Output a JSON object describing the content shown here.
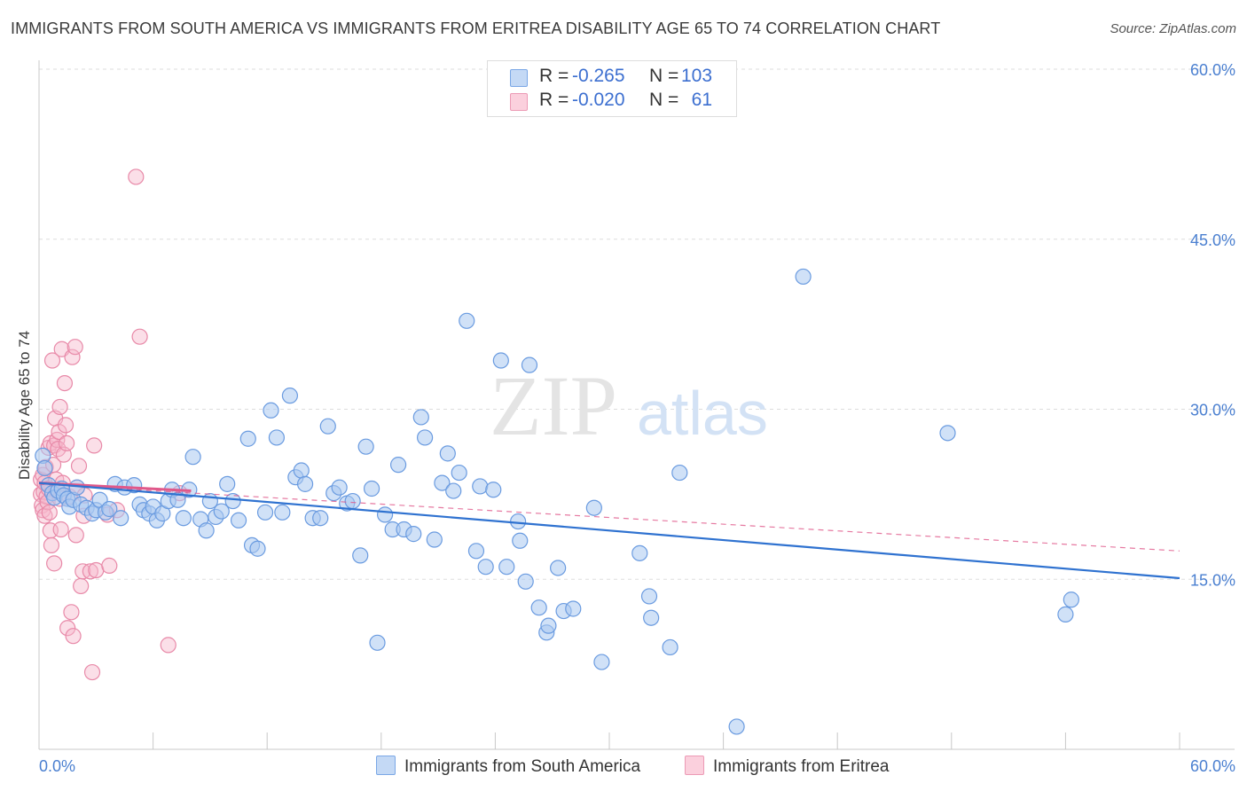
{
  "header": {
    "title": "IMMIGRANTS FROM SOUTH AMERICA VS IMMIGRANTS FROM ERITREA DISABILITY AGE 65 TO 74 CORRELATION CHART",
    "source": "Source: ZipAtlas.com"
  },
  "watermark": {
    "zip": "ZIP",
    "atlas": "atlas"
  },
  "legend": {
    "rows": [
      {
        "r_label": "R =",
        "r_value": "-0.265",
        "n_label": "N =",
        "n_value": "103",
        "color": "#a9c8f0"
      },
      {
        "r_label": "R =",
        "r_value": "-0.020",
        "n_label": "N =",
        "n_value": "61",
        "color": "#f7b7cb"
      }
    ]
  },
  "bottom_legend": {
    "series1": "Immigrants from South America",
    "series2": "Immigrants from Eritrea"
  },
  "colors": {
    "blue_fill": "#a9c8f0",
    "blue_stroke": "#6a9be0",
    "blue_line": "#2f72d0",
    "pink_fill": "#f7b7cb",
    "pink_stroke": "#e889a8",
    "pink_line": "#e0588a",
    "grid": "#dddddd",
    "tick_text": "#4a7fd0"
  },
  "chart_data": {
    "type": "scatter",
    "title": "IMMIGRANTS FROM SOUTH AMERICA VS IMMIGRANTS FROM ERITREA DISABILITY AGE 65 TO 74 CORRELATION CHART",
    "xlabel": "",
    "ylabel": "Disability Age 65 to 74",
    "xlim": [
      0,
      60
    ],
    "ylim": [
      0,
      60
    ],
    "x_tick_labels": [
      "0.0%",
      "60.0%"
    ],
    "y_ticks": [
      15,
      30,
      45,
      60
    ],
    "y_tick_labels": [
      "15.0%",
      "30.0%",
      "45.0%",
      "60.0%"
    ],
    "series": [
      {
        "name": "Immigrants from South America",
        "R": -0.265,
        "N": 103,
        "trend": {
          "x": [
            0,
            60
          ],
          "y": [
            23.5,
            15.1
          ]
        },
        "points": [
          [
            0.2,
            25.9
          ],
          [
            0.3,
            24.8
          ],
          [
            0.5,
            23.3
          ],
          [
            0.7,
            22.6
          ],
          [
            0.8,
            22.2
          ],
          [
            1.0,
            22.8
          ],
          [
            1.2,
            23.0
          ],
          [
            1.3,
            22.4
          ],
          [
            1.5,
            22.1
          ],
          [
            1.6,
            21.4
          ],
          [
            1.8,
            22.0
          ],
          [
            2.0,
            23.1
          ],
          [
            2.2,
            21.6
          ],
          [
            2.5,
            21.3
          ],
          [
            2.8,
            20.8
          ],
          [
            3.0,
            21.1
          ],
          [
            3.2,
            22.0
          ],
          [
            3.5,
            20.9
          ],
          [
            3.7,
            21.2
          ],
          [
            4.0,
            23.4
          ],
          [
            4.3,
            20.4
          ],
          [
            4.5,
            23.1
          ],
          [
            5.0,
            23.3
          ],
          [
            5.3,
            21.6
          ],
          [
            5.5,
            21.1
          ],
          [
            5.8,
            20.8
          ],
          [
            6.0,
            21.4
          ],
          [
            6.2,
            20.2
          ],
          [
            6.5,
            20.8
          ],
          [
            6.8,
            21.9
          ],
          [
            7.0,
            22.9
          ],
          [
            7.3,
            22.0
          ],
          [
            7.6,
            20.4
          ],
          [
            7.9,
            22.9
          ],
          [
            8.1,
            25.8
          ],
          [
            8.5,
            20.3
          ],
          [
            8.8,
            19.3
          ],
          [
            9.0,
            21.9
          ],
          [
            9.3,
            20.5
          ],
          [
            9.6,
            21.0
          ],
          [
            9.9,
            23.4
          ],
          [
            10.2,
            21.9
          ],
          [
            10.5,
            20.2
          ],
          [
            11.0,
            27.4
          ],
          [
            11.2,
            18.0
          ],
          [
            11.5,
            17.7
          ],
          [
            11.9,
            20.9
          ],
          [
            12.2,
            29.9
          ],
          [
            12.5,
            27.5
          ],
          [
            12.8,
            20.9
          ],
          [
            13.2,
            31.2
          ],
          [
            13.5,
            24.0
          ],
          [
            13.8,
            24.6
          ],
          [
            14.0,
            23.4
          ],
          [
            14.4,
            20.4
          ],
          [
            14.8,
            20.4
          ],
          [
            15.2,
            28.5
          ],
          [
            15.5,
            22.6
          ],
          [
            15.8,
            23.1
          ],
          [
            16.2,
            21.7
          ],
          [
            16.5,
            21.9
          ],
          [
            16.9,
            17.1
          ],
          [
            17.2,
            26.7
          ],
          [
            17.5,
            23.0
          ],
          [
            17.8,
            9.4
          ],
          [
            18.2,
            20.7
          ],
          [
            18.6,
            19.4
          ],
          [
            18.9,
            25.1
          ],
          [
            19.2,
            19.4
          ],
          [
            19.7,
            19.0
          ],
          [
            20.1,
            29.3
          ],
          [
            20.3,
            27.5
          ],
          [
            20.8,
            18.5
          ],
          [
            21.2,
            23.5
          ],
          [
            21.5,
            26.1
          ],
          [
            21.8,
            22.8
          ],
          [
            22.1,
            24.4
          ],
          [
            22.5,
            37.8
          ],
          [
            23.0,
            17.5
          ],
          [
            23.2,
            23.2
          ],
          [
            23.5,
            16.1
          ],
          [
            23.9,
            22.9
          ],
          [
            24.3,
            34.3
          ],
          [
            24.6,
            16.1
          ],
          [
            25.2,
            20.1
          ],
          [
            25.3,
            18.4
          ],
          [
            25.6,
            14.8
          ],
          [
            25.8,
            33.9
          ],
          [
            26.3,
            12.5
          ],
          [
            26.7,
            10.3
          ],
          [
            26.8,
            10.9
          ],
          [
            27.3,
            16.0
          ],
          [
            27.6,
            12.2
          ],
          [
            28.1,
            12.4
          ],
          [
            29.2,
            21.3
          ],
          [
            29.6,
            7.7
          ],
          [
            31.6,
            17.3
          ],
          [
            32.1,
            13.5
          ],
          [
            32.2,
            11.6
          ],
          [
            33.2,
            9.0
          ],
          [
            33.7,
            24.4
          ],
          [
            36.7,
            2.0
          ],
          [
            40.2,
            41.7
          ],
          [
            47.8,
            27.9
          ],
          [
            54.0,
            11.9
          ],
          [
            54.3,
            13.2
          ]
        ]
      },
      {
        "name": "Immigrants from Eritrea",
        "R": -0.02,
        "N": 61,
        "trend": {
          "x": [
            0,
            8
          ],
          "y": [
            23.5,
            22.8
          ]
        },
        "trend_dashed": {
          "x": [
            0,
            60
          ],
          "y": [
            23.4,
            17.5
          ]
        },
        "points": [
          [
            0.1,
            22.5
          ],
          [
            0.1,
            23.8
          ],
          [
            0.15,
            21.5
          ],
          [
            0.2,
            24.2
          ],
          [
            0.2,
            21.1
          ],
          [
            0.25,
            22.7
          ],
          [
            0.3,
            23.5
          ],
          [
            0.3,
            20.6
          ],
          [
            0.35,
            24.9
          ],
          [
            0.4,
            22.3
          ],
          [
            0.45,
            21.8
          ],
          [
            0.5,
            26.6
          ],
          [
            0.5,
            23.0
          ],
          [
            0.55,
            20.9
          ],
          [
            0.6,
            27.0
          ],
          [
            0.6,
            19.3
          ],
          [
            0.65,
            18.0
          ],
          [
            0.7,
            22.6
          ],
          [
            0.7,
            34.3
          ],
          [
            0.75,
            25.1
          ],
          [
            0.8,
            26.8
          ],
          [
            0.8,
            16.4
          ],
          [
            0.85,
            29.2
          ],
          [
            0.9,
            22.9
          ],
          [
            0.9,
            23.8
          ],
          [
            0.95,
            27.3
          ],
          [
            1.0,
            26.5
          ],
          [
            1.05,
            28.0
          ],
          [
            1.1,
            22.1
          ],
          [
            1.1,
            30.2
          ],
          [
            1.15,
            19.4
          ],
          [
            1.2,
            35.3
          ],
          [
            1.25,
            23.5
          ],
          [
            1.3,
            26.0
          ],
          [
            1.35,
            32.3
          ],
          [
            1.4,
            28.6
          ],
          [
            1.45,
            27.0
          ],
          [
            1.5,
            10.7
          ],
          [
            1.6,
            22.3
          ],
          [
            1.7,
            12.1
          ],
          [
            1.75,
            34.6
          ],
          [
            1.8,
            10.0
          ],
          [
            1.9,
            35.5
          ],
          [
            1.95,
            18.9
          ],
          [
            2.0,
            23.1
          ],
          [
            2.1,
            25.0
          ],
          [
            2.2,
            14.4
          ],
          [
            2.3,
            15.7
          ],
          [
            2.35,
            20.6
          ],
          [
            2.4,
            22.4
          ],
          [
            2.7,
            15.7
          ],
          [
            2.8,
            6.8
          ],
          [
            2.9,
            26.8
          ],
          [
            3.0,
            15.8
          ],
          [
            3.6,
            20.7
          ],
          [
            3.7,
            16.2
          ],
          [
            4.1,
            21.1
          ],
          [
            5.1,
            50.5
          ],
          [
            5.3,
            36.4
          ],
          [
            6.8,
            9.2
          ],
          [
            7.4,
            22.6
          ]
        ]
      }
    ]
  }
}
